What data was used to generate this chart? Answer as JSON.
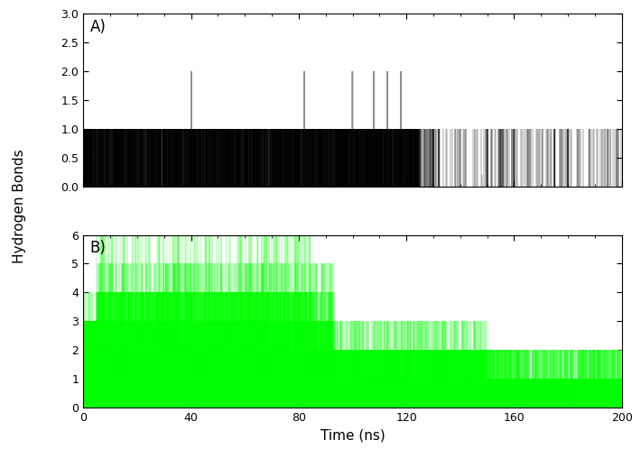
{
  "panel_A_label": "A)",
  "panel_B_label": "B)",
  "xlabel": "Time (ns)",
  "ylabel": "Hydrogen Bonds",
  "panel_A_ylim": [
    0,
    3
  ],
  "panel_B_ylim": [
    0,
    6
  ],
  "xlim": [
    0,
    200
  ],
  "xticks": [
    0,
    40,
    80,
    120,
    160,
    200
  ],
  "panel_A_yticks": [
    0,
    0.5,
    1,
    1.5,
    2,
    2.5,
    3
  ],
  "panel_B_yticks": [
    0,
    1,
    2,
    3,
    4,
    5,
    6
  ],
  "color_A": "#000000",
  "color_B": "#00ff00",
  "background_color": "#ffffff",
  "n_points": 10000,
  "time_total": 200
}
